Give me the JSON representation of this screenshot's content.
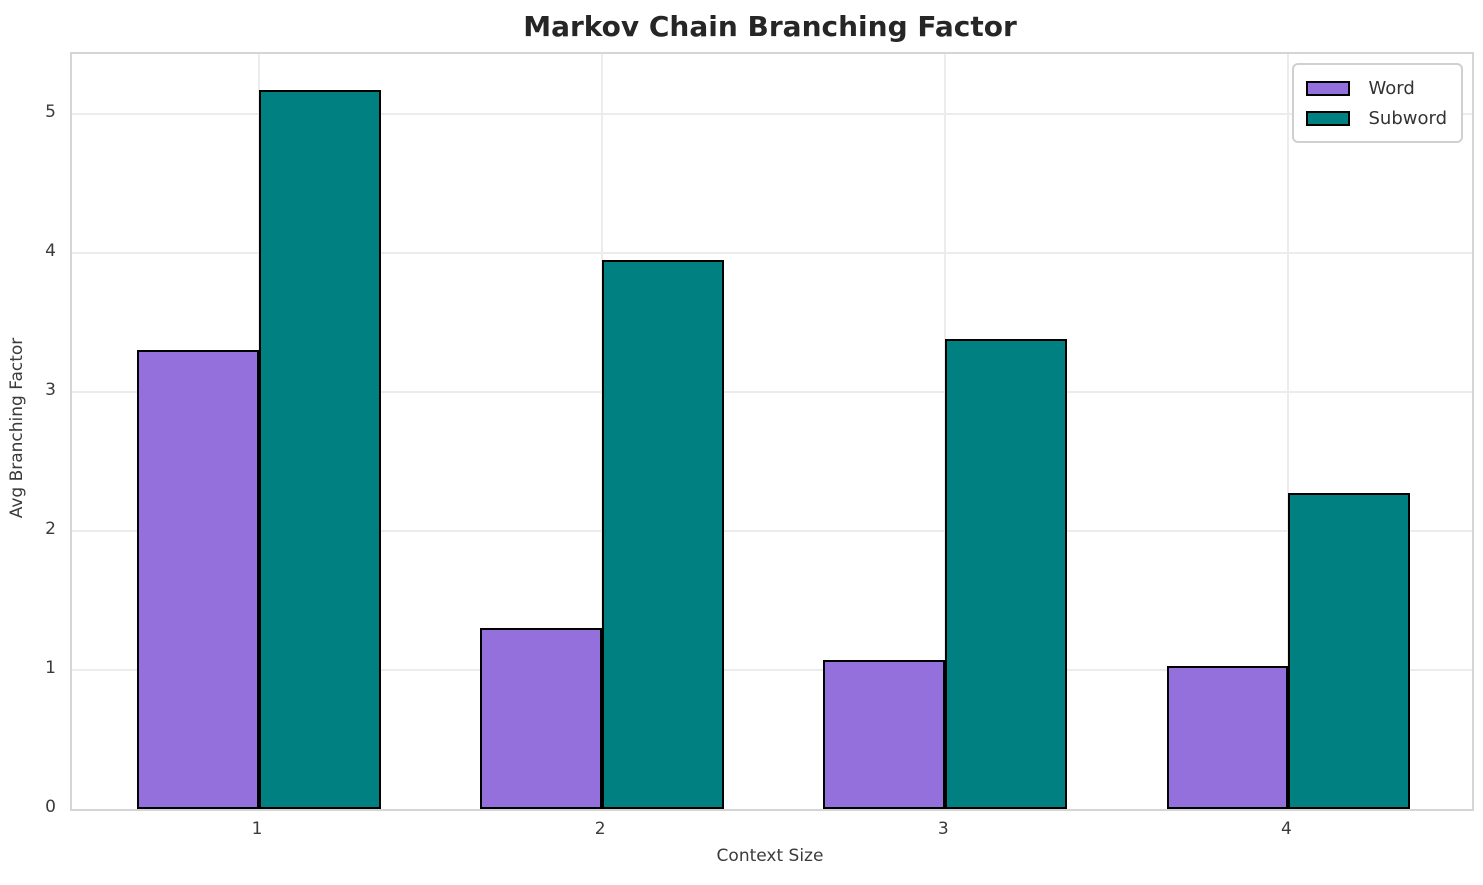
{
  "chart_data": {
    "type": "bar",
    "title": "Markov Chain Branching Factor",
    "xlabel": "Context Size",
    "ylabel": "Avg Branching Factor",
    "categories": [
      "1",
      "2",
      "3",
      "4"
    ],
    "series": [
      {
        "name": "Word",
        "color": "#9370DB",
        "values": [
          3.3,
          1.3,
          1.07,
          1.03
        ]
      },
      {
        "name": "Subword",
        "color": "#008080",
        "values": [
          5.17,
          3.95,
          3.38,
          2.27
        ]
      }
    ],
    "yticks": [
      0,
      1,
      2,
      3,
      4,
      5
    ],
    "ylim": [
      0,
      5.43
    ],
    "grid": true,
    "legend_position": "upper right",
    "style": {
      "bar_edge_color": "#000000",
      "grid_color": "#ececec",
      "spine_color": "#d5d5d5",
      "tick_text_color": "#3b3b3b",
      "title_color": "#262626",
      "background": "#ffffff"
    }
  }
}
